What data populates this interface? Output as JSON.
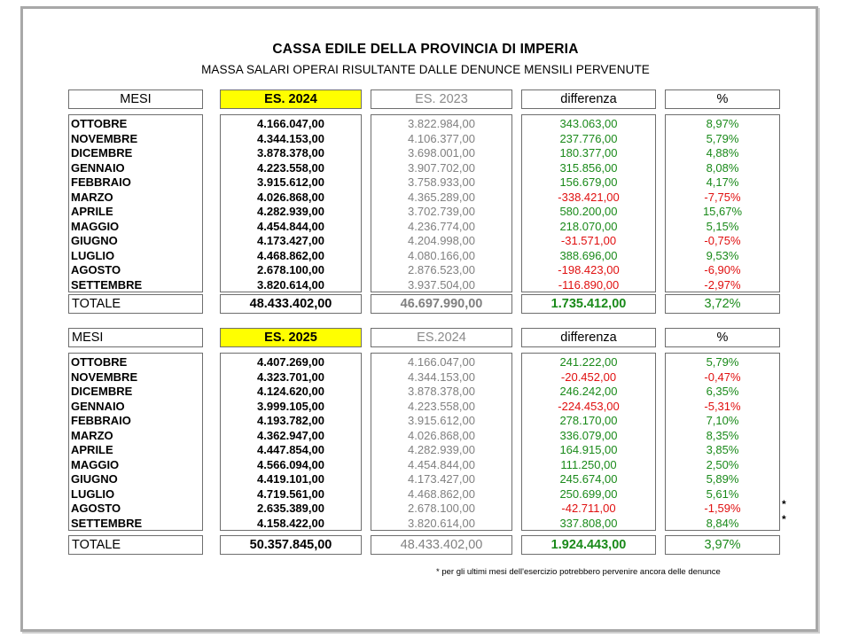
{
  "title": "CASSA EDILE DELLA PROVINCIA DI IMPERIA",
  "subtitle": "MASSA SALARI OPERAI RISULTANTE DALLE DENUNCE MENSILI PERVENUTE",
  "tables": [
    {
      "headers": {
        "mesi": "MESI",
        "current": "ES. 2024",
        "previous": "ES. 2023",
        "diff": "differenza",
        "pct": "%"
      },
      "rows": [
        {
          "mese": "OTTOBRE",
          "current": "4.166.047,00",
          "previous": "3.822.984,00",
          "diff": "343.063,00",
          "pct": "8,97%",
          "neg": false
        },
        {
          "mese": "NOVEMBRE",
          "current": "4.344.153,00",
          "previous": "4.106.377,00",
          "diff": "237.776,00",
          "pct": "5,79%",
          "neg": false
        },
        {
          "mese": "DICEMBRE",
          "current": "3.878.378,00",
          "previous": "3.698.001,00",
          "diff": "180.377,00",
          "pct": "4,88%",
          "neg": false
        },
        {
          "mese": "GENNAIO",
          "current": "4.223.558,00",
          "previous": "3.907.702,00",
          "diff": "315.856,00",
          "pct": "8,08%",
          "neg": false
        },
        {
          "mese": "FEBBRAIO",
          "current": "3.915.612,00",
          "previous": "3.758.933,00",
          "diff": "156.679,00",
          "pct": "4,17%",
          "neg": false
        },
        {
          "mese": "MARZO",
          "current": "4.026.868,00",
          "previous": "4.365.289,00",
          "diff": "-338.421,00",
          "pct": "-7,75%",
          "neg": true
        },
        {
          "mese": "APRILE",
          "current": "4.282.939,00",
          "previous": "3.702.739,00",
          "diff": "580.200,00",
          "pct": "15,67%",
          "neg": false
        },
        {
          "mese": "MAGGIO",
          "current": "4.454.844,00",
          "previous": "4.236.774,00",
          "diff": "218.070,00",
          "pct": "5,15%",
          "neg": false
        },
        {
          "mese": "GIUGNO",
          "current": "4.173.427,00",
          "previous": "4.204.998,00",
          "diff": "-31.571,00",
          "pct": "-0,75%",
          "neg": true
        },
        {
          "mese": "LUGLIO",
          "current": "4.468.862,00",
          "previous": "4.080.166,00",
          "diff": "388.696,00",
          "pct": "9,53%",
          "neg": false
        },
        {
          "mese": "AGOSTO",
          "current": "2.678.100,00",
          "previous": "2.876.523,00",
          "diff": "-198.423,00",
          "pct": "-6,90%",
          "neg": true
        },
        {
          "mese": "SETTEMBRE",
          "current": "3.820.614,00",
          "previous": "3.937.504,00",
          "diff": "-116.890,00",
          "pct": "-2,97%",
          "neg": true
        }
      ],
      "totals": {
        "label": "TOTALE",
        "current": "48.433.402,00",
        "previous": "46.697.990,00",
        "diff": "1.735.412,00",
        "pct": "3,72%"
      }
    },
    {
      "headers": {
        "mesi": "MESI",
        "current": "ES. 2025",
        "previous": "ES.2024",
        "diff": "differenza",
        "pct": "%"
      },
      "rows": [
        {
          "mese": "OTTOBRE",
          "current": "4.407.269,00",
          "previous": "4.166.047,00",
          "diff": "241.222,00",
          "pct": "5,79%",
          "neg": false
        },
        {
          "mese": "NOVEMBRE",
          "current": "4.323.701,00",
          "previous": "4.344.153,00",
          "diff": "-20.452,00",
          "pct": "-0,47%",
          "neg": true
        },
        {
          "mese": "DICEMBRE",
          "current": "4.124.620,00",
          "previous": "3.878.378,00",
          "diff": "246.242,00",
          "pct": "6,35%",
          "neg": false
        },
        {
          "mese": "GENNAIO",
          "current": "3.999.105,00",
          "previous": "4.223.558,00",
          "diff": "-224.453,00",
          "pct": "-5,31%",
          "neg": true
        },
        {
          "mese": "FEBBRAIO",
          "current": "4.193.782,00",
          "previous": "3.915.612,00",
          "diff": "278.170,00",
          "pct": "7,10%",
          "neg": false
        },
        {
          "mese": "MARZO",
          "current": "4.362.947,00",
          "previous": "4.026.868,00",
          "diff": "336.079,00",
          "pct": "8,35%",
          "neg": false
        },
        {
          "mese": "APRILE",
          "current": "4.447.854,00",
          "previous": "4.282.939,00",
          "diff": "164.915,00",
          "pct": "3,85%",
          "neg": false
        },
        {
          "mese": "MAGGIO",
          "current": "4.566.094,00",
          "previous": "4.454.844,00",
          "diff": "111.250,00",
          "pct": "2,50%",
          "neg": false
        },
        {
          "mese": "GIUGNO",
          "current": "4.419.101,00",
          "previous": "4.173.427,00",
          "diff": "245.674,00",
          "pct": "5,89%",
          "neg": false
        },
        {
          "mese": "LUGLIO",
          "current": "4.719.561,00",
          "previous": "4.468.862,00",
          "diff": "250.699,00",
          "pct": "5,61%",
          "neg": false
        },
        {
          "mese": "AGOSTO",
          "current": "2.635.389,00",
          "previous": "2.678.100,00",
          "diff": "-42.711,00",
          "pct": "-1,59%",
          "neg": true,
          "star": "*"
        },
        {
          "mese": "SETTEMBRE",
          "current": "4.158.422,00",
          "previous": "3.820.614,00",
          "diff": "337.808,00",
          "pct": "8,84%",
          "neg": false,
          "star": "*"
        }
      ],
      "totals": {
        "label": "TOTALE",
        "current": "50.357.845,00",
        "previous": "48.433.402,00",
        "diff": "1.924.443,00",
        "pct": "3,97%"
      }
    }
  ],
  "footnote": "* per gli ultimi mesi dell'esercizio potrebbero pervenire ancora delle denunce",
  "colors": {
    "highlight": "#ffff00",
    "positive": "#1a8a1a",
    "negative": "#e01010",
    "previous": "#808080"
  }
}
